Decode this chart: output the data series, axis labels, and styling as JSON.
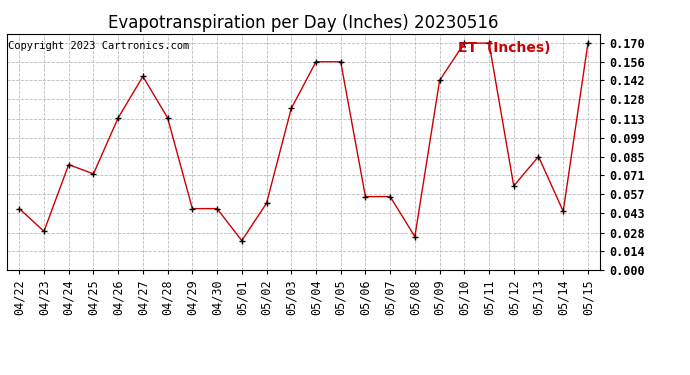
{
  "title": "Evapotranspiration per Day (Inches) 20230516",
  "copyright": "Copyright 2023 Cartronics.com",
  "legend_label": "ET  (Inches)",
  "dates": [
    "04/22",
    "04/23",
    "04/24",
    "04/25",
    "04/26",
    "04/27",
    "04/28",
    "04/29",
    "04/30",
    "05/01",
    "05/02",
    "05/03",
    "05/04",
    "05/05",
    "05/06",
    "05/07",
    "05/08",
    "05/09",
    "05/10",
    "05/11",
    "05/12",
    "05/13",
    "05/14",
    "05/15"
  ],
  "values": [
    0.046,
    0.029,
    0.079,
    0.072,
    0.114,
    0.145,
    0.114,
    0.046,
    0.046,
    0.022,
    0.05,
    0.121,
    0.156,
    0.156,
    0.055,
    0.055,
    0.025,
    0.142,
    0.17,
    0.17,
    0.063,
    0.085,
    0.044,
    0.17
  ],
  "line_color": "#cc0000",
  "marker": "+",
  "marker_color": "#000000",
  "background_color": "#ffffff",
  "grid_color": "#bbbbbb",
  "ylim": [
    0.0,
    0.177
  ],
  "yticks": [
    0.0,
    0.014,
    0.028,
    0.043,
    0.057,
    0.071,
    0.085,
    0.099,
    0.113,
    0.128,
    0.142,
    0.156,
    0.17
  ],
  "title_fontsize": 12,
  "copyright_fontsize": 7.5,
  "legend_fontsize": 10,
  "tick_fontsize": 8.5,
  "ytick_fontsize": 8.5
}
